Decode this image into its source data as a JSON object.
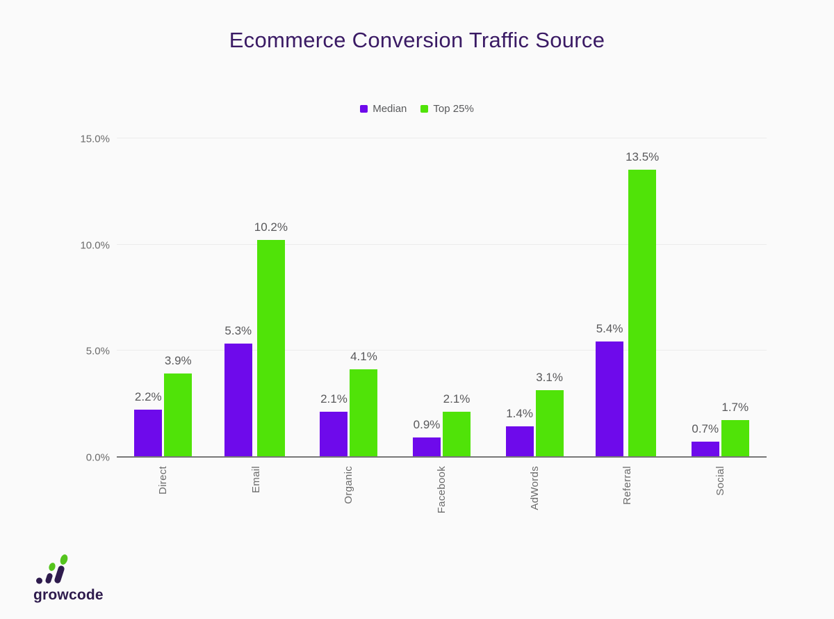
{
  "title": "Ecommerce Conversion Traffic Source",
  "chart_data": {
    "type": "bar",
    "title": "Ecommerce Conversion Traffic Source",
    "categories": [
      "Direct",
      "Email",
      "Organic",
      "Facebook",
      "AdWords",
      "Referral",
      "Social"
    ],
    "series": [
      {
        "name": "Median",
        "color": "#6E0AEB",
        "values": [
          2.2,
          5.3,
          2.1,
          0.9,
          1.4,
          5.4,
          0.7
        ],
        "labels": [
          "2.2%",
          "5.3%",
          "2.1%",
          "0.9%",
          "1.4%",
          "5.4%",
          "0.7%"
        ]
      },
      {
        "name": "Top 25%",
        "color": "#50E308",
        "values": [
          3.9,
          10.2,
          4.1,
          2.1,
          3.1,
          13.5,
          1.7
        ],
        "labels": [
          "3.9%",
          "10.2%",
          "4.1%",
          "2.1%",
          "3.1%",
          "13.5%",
          "1.7%"
        ]
      }
    ],
    "ylim": [
      0,
      15
    ],
    "yticks": [
      {
        "value": 0,
        "label": "0.0%"
      },
      {
        "value": 5,
        "label": "5.0%"
      },
      {
        "value": 10,
        "label": "10.0%"
      },
      {
        "value": 15,
        "label": "15.0%"
      }
    ],
    "grid": true,
    "legend_position": "top-center",
    "xlabel": "",
    "ylabel": ""
  },
  "branding": {
    "logo_text": "growcode"
  },
  "colors": {
    "background": "#FAFAFA",
    "title": "#3A1A64",
    "bar_median": "#6E0AEB",
    "bar_top25": "#50E308",
    "value_label": "#58585A",
    "axis_label": "#6B6B6B",
    "gridline": "#ECECEC",
    "baseline": "#777777",
    "logo_purple": "#2E1B4D",
    "logo_green": "#54C41D"
  }
}
